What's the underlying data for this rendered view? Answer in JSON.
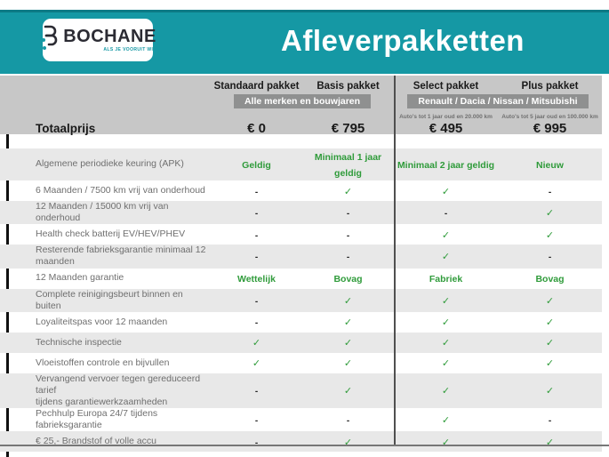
{
  "logo": {
    "brand": "BOCHANE",
    "tagline": "ALS JE VOORUIT WIL"
  },
  "header": {
    "title": "Afleverpakketten"
  },
  "colors": {
    "teal": "#1598A4",
    "teal_dark": "#0D7A85",
    "green": "#2F9B3A",
    "header_gray": "#C7C7C7",
    "badge_gray": "#8F9090",
    "row_gray": "#E8E8E8"
  },
  "table": {
    "columns": [
      {
        "label": "Standaard pakket"
      },
      {
        "label": "Basis pakket"
      },
      {
        "label": "Select pakket"
      },
      {
        "label": "Plus pakket"
      }
    ],
    "groups": [
      {
        "badge": "Alle merken en bouwjaren",
        "subnotes": [
          "",
          ""
        ]
      },
      {
        "badge": "Renault / Dacia / Nissan / Mitsubishi",
        "subnotes": [
          "Auto's tot 1 jaar oud en 20.000 km",
          "Auto's tot 5 jaar oud en 100.000 km"
        ]
      }
    ],
    "price_row": {
      "label": "Totaalprijs",
      "values": [
        "€ 0",
        "€ 795",
        "€ 495",
        "€ 995"
      ]
    },
    "rows": [
      {
        "label": "Algemene periodieke keuring (APK)",
        "values": [
          "Geldig",
          "Minimaal 1 jaar geldig",
          "Minimaal 2 jaar geldig",
          "Nieuw"
        ]
      },
      {
        "label": "6 Maanden / 7500 km vrij van onderhoud",
        "values": [
          "-",
          "✓",
          "✓",
          "-"
        ]
      },
      {
        "label": "12 Maanden / 15000 km vrij van onderhoud",
        "values": [
          "-",
          "-",
          "-",
          "✓"
        ]
      },
      {
        "label": "Health check batterij EV/HEV/PHEV",
        "values": [
          "-",
          "-",
          "✓",
          "✓"
        ]
      },
      {
        "label": "Resterende fabrieksgarantie minimaal 12 maanden",
        "values": [
          "-",
          "-",
          "✓",
          "-"
        ]
      },
      {
        "label": "12 Maanden garantie",
        "values": [
          "Wettelijk",
          "Bovag",
          "Fabriek",
          "Bovag"
        ]
      },
      {
        "label": "Complete reinigingsbeurt binnen en buiten",
        "values": [
          "-",
          "✓",
          "✓",
          "✓"
        ]
      },
      {
        "label": "Loyaliteitspas voor 12 maanden",
        "values": [
          "-",
          "✓",
          "✓",
          "✓"
        ]
      },
      {
        "label": "Technische inspectie",
        "values": [
          "✓",
          "✓",
          "✓",
          "✓"
        ]
      },
      {
        "label": "Vloeistoffen controle en bijvullen",
        "values": [
          "✓",
          "✓",
          "✓",
          "✓"
        ]
      },
      {
        "label": "Vervangend vervoer tegen gereduceerd tarief\ntijdens garantiewerkzaamheden",
        "values": [
          "-",
          "✓",
          "✓",
          "✓"
        ]
      },
      {
        "label": "Pechhulp Europa 24/7 tijdens fabrieksgarantie",
        "values": [
          "-",
          "-",
          "✓",
          "-"
        ]
      },
      {
        "label": "€ 25,- Brandstof of volle accu",
        "values": [
          "-",
          "✓",
          "✓",
          "✓"
        ]
      }
    ]
  }
}
